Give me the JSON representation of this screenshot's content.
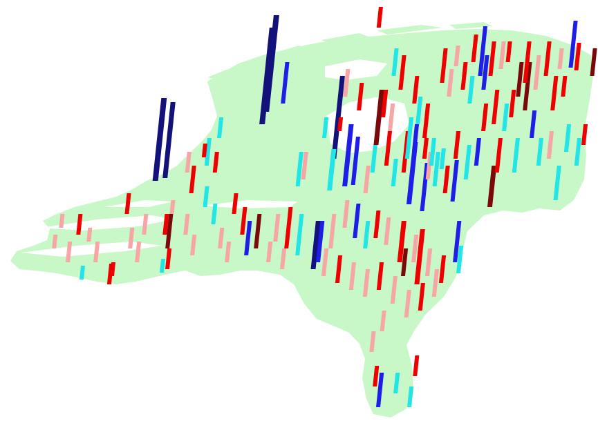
{
  "map": {
    "type": "3d-bar-map",
    "land_color": "#c8f7c8",
    "background_color": "#ffffff",
    "category_colors": {
      "c1": "#f7a6a6",
      "c2": "#ee0000",
      "c3": "#7a0a0a",
      "c4": "#22e6e6",
      "c5": "#1e1ee6",
      "c6": "#12127a"
    }
  }
}
